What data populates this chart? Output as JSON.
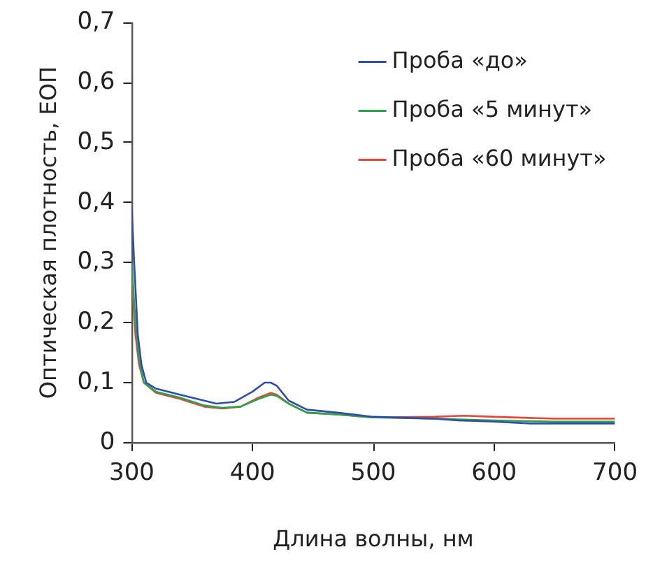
{
  "chart_data": {
    "type": "line",
    "xlabel": "Длина волны, нм",
    "ylabel": "Оптическая плотность, ЕОП",
    "xlim": [
      300,
      700
    ],
    "xticks": [
      300,
      400,
      500,
      600,
      700
    ],
    "ylim": [
      0,
      0.7
    ],
    "yticks": [
      {
        "value": 0,
        "label": "0"
      },
      {
        "value": 0.1,
        "label": "0,1"
      },
      {
        "value": 0.2,
        "label": "0,2"
      },
      {
        "value": 0.3,
        "label": "0,3"
      },
      {
        "value": 0.4,
        "label": "0,4"
      },
      {
        "value": 0.5,
        "label": "0,5"
      },
      {
        "value": 0.6,
        "label": "0,6"
      },
      {
        "value": 0.7,
        "label": "0,7"
      }
    ],
    "grid": false,
    "legend": "top right",
    "marker": "none",
    "line_style": "solid",
    "series": [
      {
        "name": "Проба «до»",
        "color": "#2e4fa8",
        "x": [
          300,
          302,
          305,
          308,
          312,
          320,
          340,
          360,
          370,
          385,
          400,
          410,
          415,
          420,
          430,
          445,
          470,
          500,
          550,
          570,
          600,
          630,
          700
        ],
        "values": [
          0.39,
          0.3,
          0.18,
          0.13,
          0.1,
          0.09,
          0.08,
          0.07,
          0.065,
          0.068,
          0.085,
          0.1,
          0.1,
          0.095,
          0.07,
          0.055,
          0.05,
          0.043,
          0.04,
          0.037,
          0.035,
          0.032,
          0.032
        ]
      },
      {
        "name": "Проба «5 минут»",
        "color": "#2ca24a",
        "x": [
          300,
          303,
          306,
          310,
          320,
          340,
          360,
          375,
          390,
          405,
          415,
          420,
          430,
          445,
          470,
          500,
          550,
          600,
          650,
          700
        ],
        "values": [
          0.3,
          0.2,
          0.14,
          0.1,
          0.085,
          0.075,
          0.062,
          0.058,
          0.06,
          0.073,
          0.08,
          0.078,
          0.065,
          0.05,
          0.047,
          0.042,
          0.04,
          0.037,
          0.035,
          0.035
        ]
      },
      {
        "name": "Проба «60 минут»",
        "color": "#e8453c",
        "x": [
          300,
          303,
          306,
          310,
          320,
          340,
          360,
          375,
          390,
          405,
          415,
          420,
          430,
          445,
          470,
          500,
          550,
          575,
          600,
          650,
          700
        ],
        "values": [
          0.28,
          0.18,
          0.13,
          0.1,
          0.083,
          0.073,
          0.06,
          0.057,
          0.06,
          0.075,
          0.083,
          0.08,
          0.065,
          0.05,
          0.047,
          0.042,
          0.043,
          0.045,
          0.043,
          0.04,
          0.04
        ]
      }
    ]
  }
}
